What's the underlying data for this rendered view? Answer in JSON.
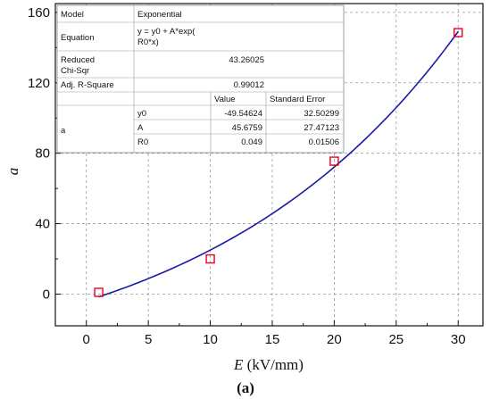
{
  "chart_data": {
    "type": "scatter",
    "xlabel_italic": "E",
    "xlabel_unit": " (kV/mm)",
    "ylabel": "a",
    "xlim": [
      -2.5,
      32
    ],
    "ylim": [
      -18,
      165
    ],
    "xticks": [
      0,
      5,
      10,
      15,
      20,
      25,
      30
    ],
    "yticks": [
      0,
      40,
      80,
      120,
      160
    ],
    "grid": true,
    "points": [
      {
        "x": 1,
        "y": 1
      },
      {
        "x": 10,
        "y": 20
      },
      {
        "x": 20,
        "y": 75.5
      },
      {
        "x": 30,
        "y": 148.5
      }
    ],
    "fit": {
      "model": "exponential",
      "y0": -49.54624,
      "A": 45.6759,
      "R0": 0.049,
      "x_range": [
        1,
        30
      ]
    },
    "marker_color": "#e8001c",
    "fit_color": "#1a1aa6",
    "caption": "(a)"
  },
  "fit_table": {
    "model_label": "Model",
    "model_value": "Exponential",
    "equation_label": "Equation",
    "equation_line1": "y = y0 + A*exp(",
    "equation_line2": "R0*x)",
    "chisq_label_1": "Reduced",
    "chisq_label_2": "Chi-Sqr",
    "chisq_value": "43.26025",
    "r2_label": "Adj. R-Square",
    "r2_value": "0.99012",
    "col_value": "Value",
    "col_stderr": "Standard Error",
    "row_group": "a",
    "params": [
      {
        "name": "y0",
        "value": "-49.54624",
        "stderr": "32.50299"
      },
      {
        "name": "A",
        "value": "45.6759",
        "stderr": "27.47123"
      },
      {
        "name": "R0",
        "value": "0.049",
        "stderr": "0.01506"
      }
    ]
  }
}
